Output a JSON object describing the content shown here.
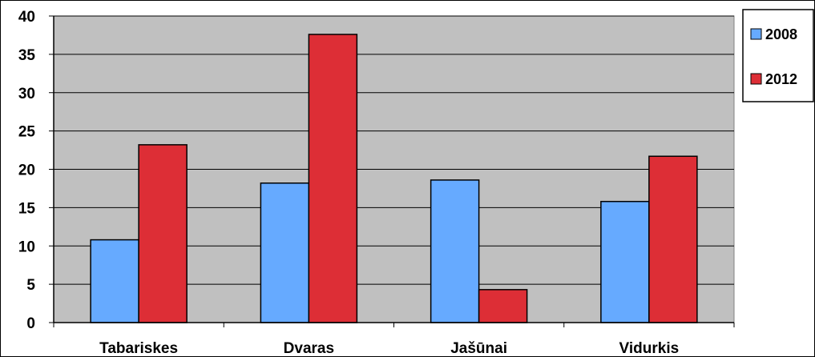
{
  "chart_data": {
    "type": "bar",
    "categories": [
      "Tabariskes",
      "Dvaras",
      "Jašūnai",
      "Vidurkis"
    ],
    "series": [
      {
        "name": "2008",
        "values": [
          10.8,
          18.2,
          18.6,
          15.8
        ],
        "color": "#66aaff"
      },
      {
        "name": "2012",
        "values": [
          23.2,
          37.6,
          4.3,
          21.7
        ],
        "color": "#dd2e36"
      }
    ],
    "title": "",
    "xlabel": "",
    "ylabel": "",
    "ylim": [
      0,
      40
    ],
    "yticks": [
      "0",
      "5",
      "10",
      "15",
      "20",
      "25",
      "30",
      "35",
      "40"
    ],
    "grid": true,
    "legend_position": "right-top",
    "plot_background": "#c0c0c0"
  }
}
